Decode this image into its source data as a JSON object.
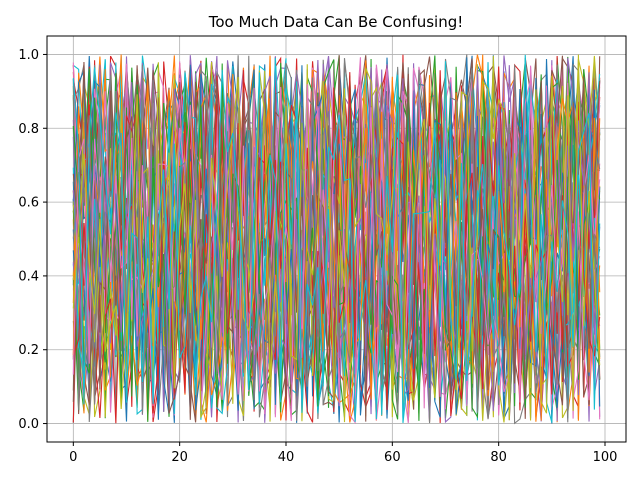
{
  "chart_data": {
    "type": "line",
    "title": "Too Much Data Can Be Confusing!",
    "xlabel": "",
    "ylabel": "",
    "xlim": [
      -4.95,
      103.95
    ],
    "ylim": [
      -0.05,
      1.05
    ],
    "x_ticks": [
      0,
      20,
      40,
      60,
      80,
      100
    ],
    "y_ticks": [
      0.0,
      0.2,
      0.4,
      0.6,
      0.8,
      1.0
    ],
    "x_tick_labels": [
      "0",
      "20",
      "40",
      "60",
      "80",
      "100"
    ],
    "y_tick_labels": [
      "0.0",
      "0.2",
      "0.4",
      "0.6",
      "0.8",
      "1.0"
    ],
    "grid": true,
    "legend": "none",
    "x": [
      0,
      1,
      2,
      3,
      4,
      5,
      6,
      7,
      8,
      9,
      10,
      11,
      12,
      13,
      14,
      15,
      16,
      17,
      18,
      19,
      20,
      21,
      22,
      23,
      24,
      25,
      26,
      27,
      28,
      29,
      30,
      31,
      32,
      33,
      34,
      35,
      36,
      37,
      38,
      39,
      40,
      41,
      42,
      43,
      44,
      45,
      46,
      47,
      48,
      49,
      50,
      51,
      52,
      53,
      54,
      55,
      56,
      57,
      58,
      59,
      60,
      61,
      62,
      63,
      64,
      65,
      66,
      67,
      68,
      69,
      70,
      71,
      72,
      73,
      74,
      75,
      76,
      77,
      78,
      79,
      80,
      81,
      82,
      83,
      84,
      85,
      86,
      87,
      88,
      89,
      90,
      91,
      92,
      93,
      94,
      95,
      96,
      97,
      98,
      99
    ],
    "series_count": 50,
    "series_values": "uniform random values in [0, 1] for each x; 50 overlapping series",
    "colors": [
      "#1f77b4",
      "#ff7f0e",
      "#2ca02c",
      "#d62728",
      "#9467bd",
      "#8c564b",
      "#e377c2",
      "#7f7f7f",
      "#bcbd22",
      "#17becf"
    ]
  }
}
